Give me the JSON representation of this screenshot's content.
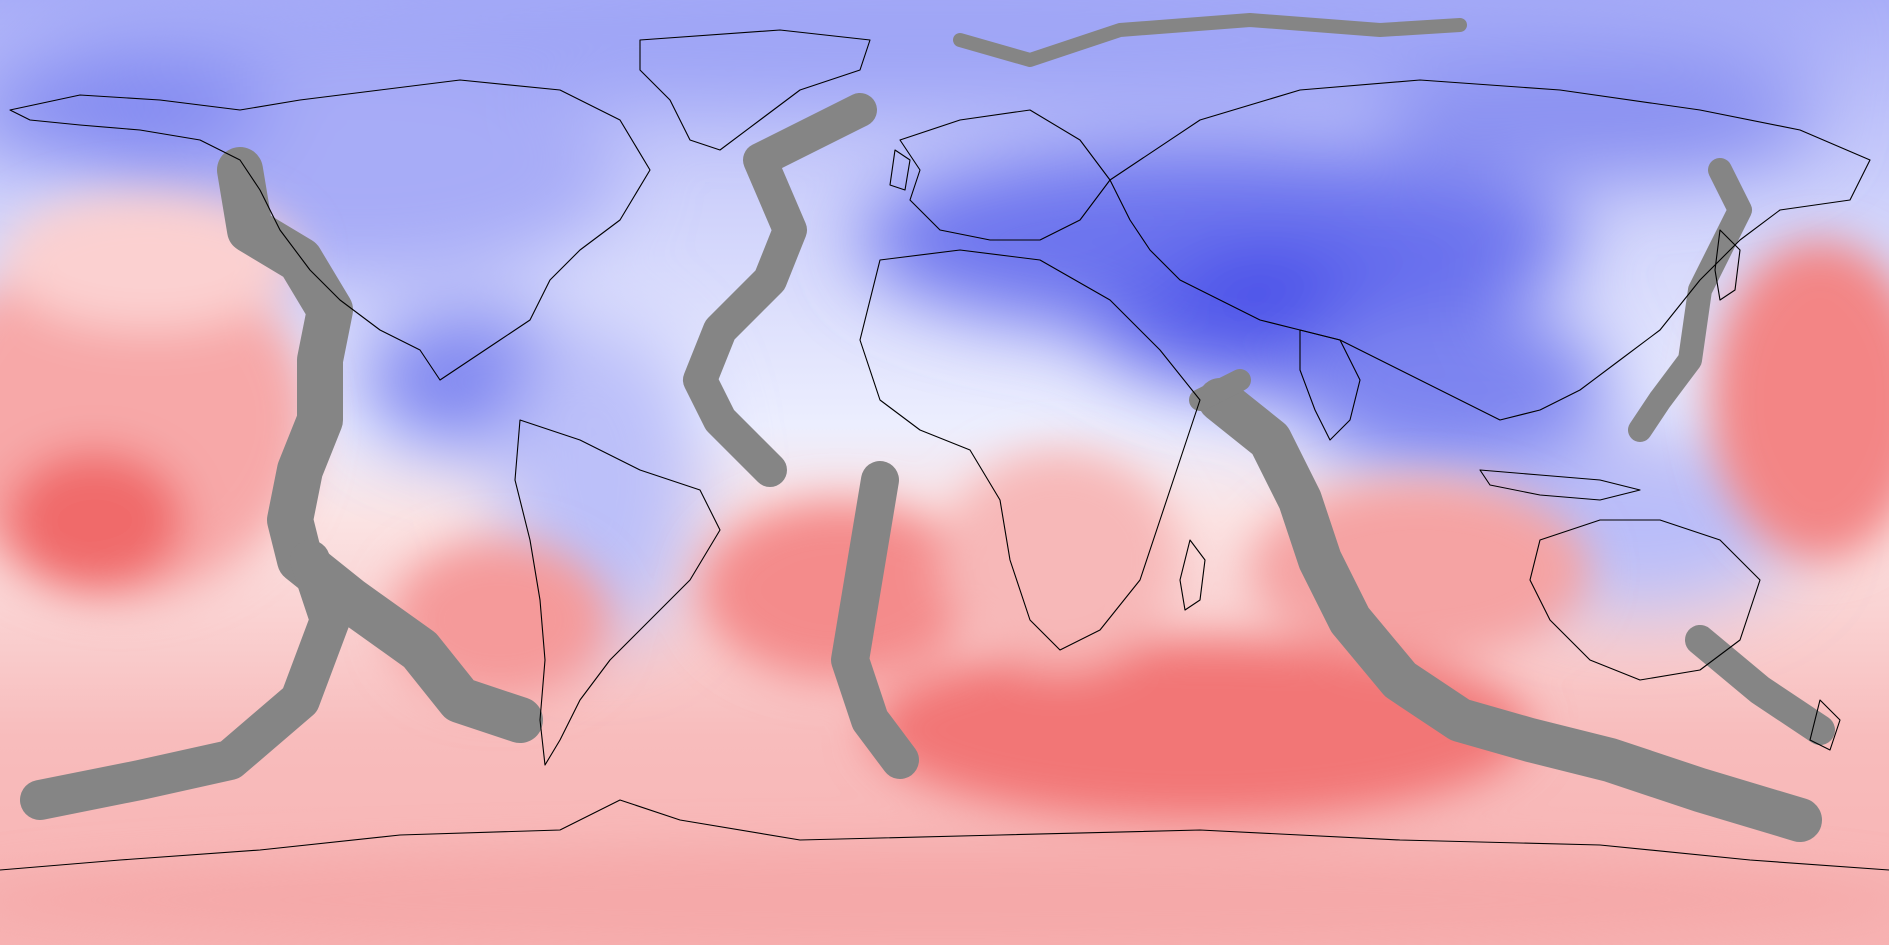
{
  "map": {
    "projection": "equirectangular",
    "extent": {
      "lon": [
        -180,
        180
      ],
      "lat": [
        -90,
        90
      ]
    },
    "colors": {
      "cold_strong": "#3a3fe6",
      "cold_mid": "#8f96f2",
      "cold_light": "#c9cdfb",
      "neutral": "#f6f6fb",
      "warm_light": "#fcd6d6",
      "warm_mid": "#f9a1a1",
      "warm_strong": "#f25555",
      "masked": "#858585",
      "coastline": "#000000"
    },
    "legend": null
  }
}
